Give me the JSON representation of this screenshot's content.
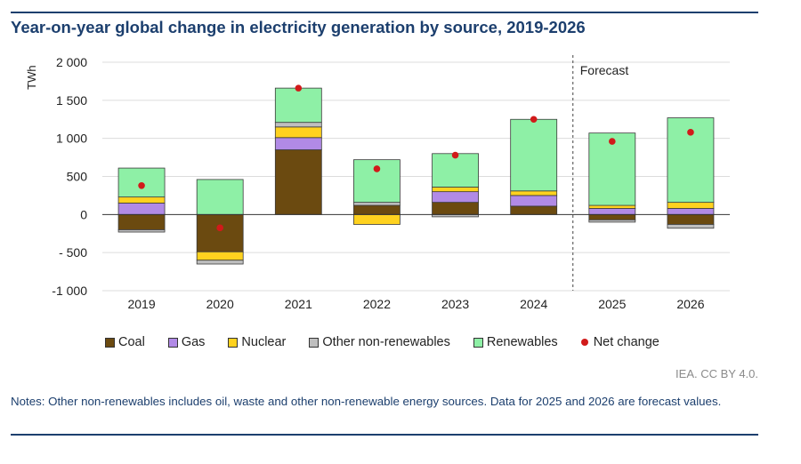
{
  "title": "Year-on-year global change in electricity generation by source, 2019-2026",
  "chart_data": {
    "type": "bar",
    "stacked": true,
    "categories": [
      "2019",
      "2020",
      "2021",
      "2022",
      "2023",
      "2024",
      "2025",
      "2026"
    ],
    "ylabel": "TWh",
    "ylim": [
      -1000,
      2000
    ],
    "yticks": [
      -1000,
      -500,
      0,
      500,
      1000,
      1500,
      2000
    ],
    "ytick_labels": [
      "-1 000",
      "- 500",
      "0",
      "500",
      "1 000",
      "1 500",
      "2 000"
    ],
    "grid": true,
    "legend_position": "bottom",
    "series": [
      {
        "name": "Coal",
        "color": "#6b4a10",
        "values": [
          -200,
          -490,
          850,
          120,
          160,
          110,
          -70,
          -130
        ]
      },
      {
        "name": "Gas",
        "color": "#b18ae6",
        "values": [
          150,
          0,
          160,
          0,
          140,
          140,
          80,
          80
        ]
      },
      {
        "name": "Nuclear",
        "color": "#ffd21f",
        "values": [
          80,
          -110,
          140,
          -130,
          60,
          60,
          40,
          80
        ]
      },
      {
        "name": "Other non-renewables",
        "color": "#bfbfbf",
        "values": [
          -30,
          -50,
          60,
          40,
          -30,
          0,
          -30,
          -50
        ]
      },
      {
        "name": "Renewables",
        "color": "#8ef0a6",
        "values": [
          380,
          460,
          450,
          560,
          440,
          940,
          950,
          1110
        ]
      }
    ],
    "net_change": {
      "name": "Net change",
      "color": "#d11a1a",
      "values": [
        380,
        -175,
        1660,
        600,
        780,
        1250,
        960,
        1080
      ]
    },
    "annotations": [
      {
        "text": "Forecast"
      }
    ]
  },
  "source": "IEA. CC BY 4.0.",
  "notes": "Notes: Other non-renewables includes oil, waste and other non-renewable energy sources. Data for 2025 and 2026 are forecast values."
}
